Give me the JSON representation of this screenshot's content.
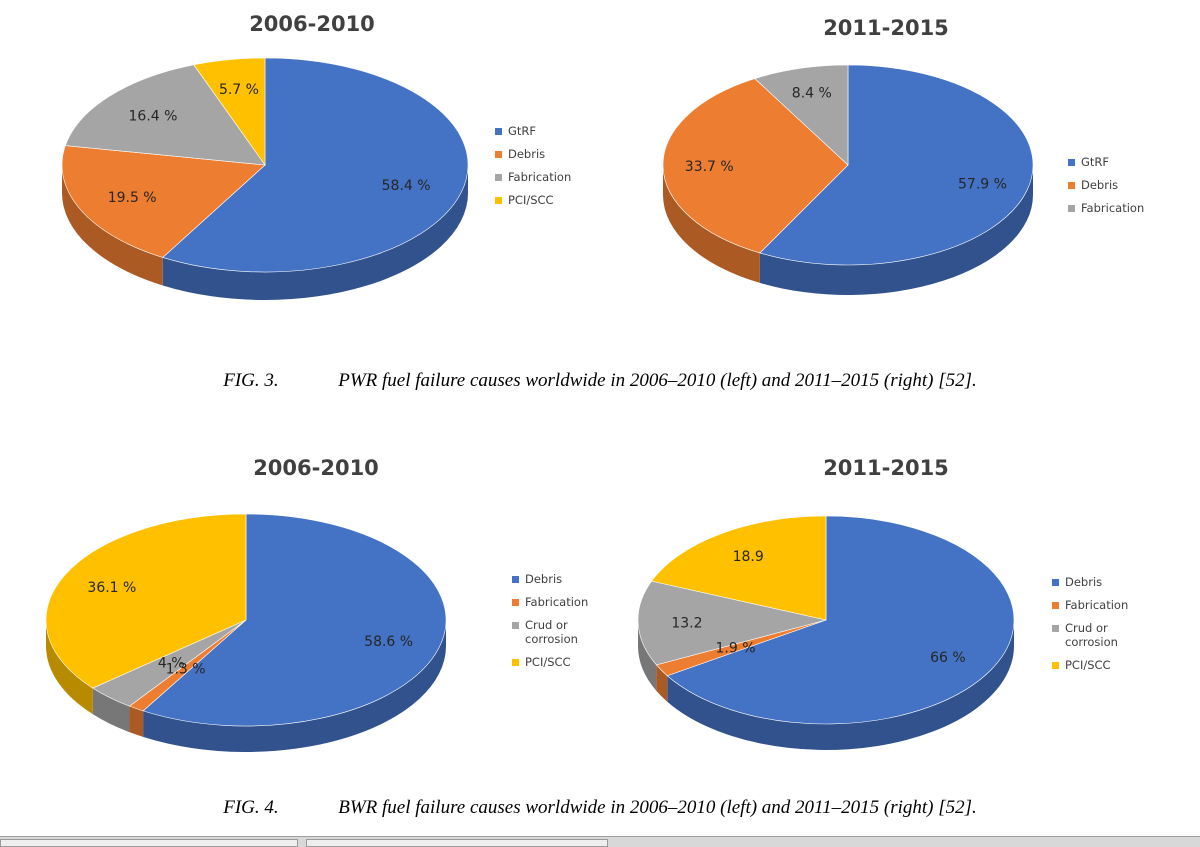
{
  "chart_data": [
    {
      "type": "pie",
      "title": "2006-2010",
      "categories": [
        "GtRF",
        "Debris",
        "Fabrication",
        "PCI/SCC"
      ],
      "values": [
        58.4,
        19.5,
        16.4,
        5.7
      ],
      "labels": [
        "58.4 %",
        "19.5 %",
        "16.4 %",
        "5.7 %"
      ],
      "colors": [
        "#4472C4",
        "#ED7D31",
        "#A5A5A5",
        "#FFC000"
      ],
      "legend": [
        "GtRF",
        "Debris",
        "Fabrication",
        "PCI/SCC"
      ],
      "legend_position": "right"
    },
    {
      "type": "pie",
      "title": "2011-2015",
      "categories": [
        "GtRF",
        "Debris",
        "Fabrication"
      ],
      "values": [
        57.9,
        33.7,
        8.4
      ],
      "labels": [
        "57.9 %",
        "33.7 %",
        "8.4 %"
      ],
      "colors": [
        "#4472C4",
        "#ED7D31",
        "#A5A5A5"
      ],
      "legend": [
        "GtRF",
        "Debris",
        "Fabrication"
      ],
      "legend_position": "right"
    },
    {
      "type": "pie",
      "title": "2006-2010",
      "categories": [
        "Debris",
        "Fabrication",
        "Crud or corrosion",
        "PCI/SCC"
      ],
      "values": [
        58.6,
        1.3,
        4,
        36.1
      ],
      "labels": [
        "58.6 %",
        "1.3 %",
        "4 %",
        "36.1 %"
      ],
      "colors": [
        "#4472C4",
        "#ED7D31",
        "#A5A5A5",
        "#FFC000"
      ],
      "legend": [
        "Debris",
        "Fabrication",
        "Crud or corrosion",
        "PCI/SCC"
      ],
      "legend_position": "right"
    },
    {
      "type": "pie",
      "title": "2011-2015",
      "categories": [
        "Debris",
        "Fabrication",
        "Crud or corrosion",
        "PCI/SCC"
      ],
      "values": [
        66,
        1.9,
        13.2,
        18.9
      ],
      "labels": [
        "66 %",
        "1.9 %",
        "13.2",
        "18.9"
      ],
      "colors": [
        "#4472C4",
        "#ED7D31",
        "#A5A5A5",
        "#FFC000"
      ],
      "legend": [
        "Debris",
        "Fabrication",
        "Crud or corrosion",
        "PCI/SCC"
      ],
      "legend_position": "right"
    }
  ],
  "captions": {
    "fig3": {
      "number": "FIG. 3.",
      "text": "PWR fuel failure causes worldwide in 2006–2010 (left) and 2011–2015 (right) [52]."
    },
    "fig4": {
      "number": "FIG. 4.",
      "text": "BWR fuel failure causes worldwide in 2006–2010 (left) and 2011–2015 (right) [52]."
    }
  }
}
